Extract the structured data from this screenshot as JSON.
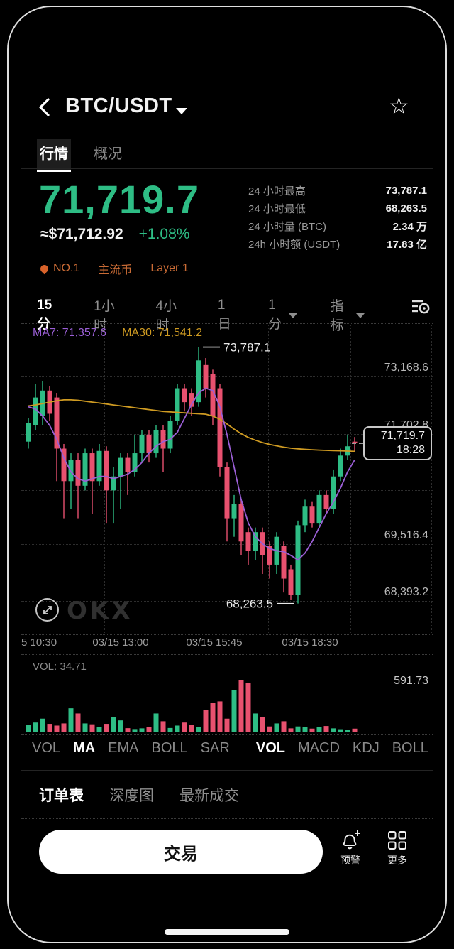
{
  "header": {
    "title": "BTC/USDT",
    "back_icon": "back-chevron",
    "favorite_icon": "star"
  },
  "tabs": [
    {
      "label": "行情"
    },
    {
      "label": "概况"
    }
  ],
  "price": {
    "last": "71,719.7",
    "fiat": "≈$71,712.92",
    "change": "+1.08%"
  },
  "badges": {
    "rank": "NO.1",
    "tag1": "主流币",
    "tag2": "Layer 1"
  },
  "stats": [
    {
      "label": "24 小时最高",
      "value": "73,787.1"
    },
    {
      "label": "24 小时最低",
      "value": "68,263.5"
    },
    {
      "label": "24 小时量 (BTC)",
      "value": "2.34 万"
    },
    {
      "label": "24h 小时额 (USDT)",
      "value": "17.83 亿"
    }
  ],
  "timeframes": [
    {
      "label": "15分"
    },
    {
      "label": "1小时"
    },
    {
      "label": "4小时"
    },
    {
      "label": "1日"
    },
    {
      "label": "1分"
    },
    {
      "label": "指标"
    }
  ],
  "chart": {
    "ma7_label": "MA7: 71,357.6",
    "ma30_label": "MA30: 71,541.2",
    "high_label": "73,787.1",
    "low_label": "68,263.5",
    "price_tag": {
      "price": "71,719.7",
      "time": "18:28"
    },
    "y_axis": [
      "73,168.6",
      "71,702.8",
      "69,516.4",
      "68,393.2"
    ],
    "x_axis": [
      "5 10:30",
      "03/15 13:00",
      "03/15 15:45",
      "03/15 18:30"
    ],
    "watermark": "OKX"
  },
  "volume": {
    "label": "VOL: 34.71",
    "max_label": "591.73"
  },
  "indicators": [
    {
      "label": "VOL"
    },
    {
      "label": "MA"
    },
    {
      "label": "EMA"
    },
    {
      "label": "BOLL"
    },
    {
      "label": "SAR"
    },
    {
      "label": "VOL"
    },
    {
      "label": "MACD"
    },
    {
      "label": "KDJ"
    },
    {
      "label": "BOLL"
    }
  ],
  "bottom_tabs": [
    {
      "label": "订单表"
    },
    {
      "label": "深度图"
    },
    {
      "label": "最新成交"
    }
  ],
  "actions": {
    "trade": "交易",
    "alert": "预警",
    "more": "更多"
  },
  "chart_data": {
    "type": "candlestick",
    "timeframe": "15分",
    "pair": "BTC/USDT",
    "y_ticks": [
      73168.6,
      71702.8,
      69516.4,
      68393.2
    ],
    "x_ticks": [
      "5 10:30",
      "03/15 13:00",
      "03/15 15:45",
      "03/15 18:30"
    ],
    "high": 73787.1,
    "low": 68263.5,
    "last": 71719.7,
    "last_time": "18:28",
    "ma7_last": 71357.6,
    "ma30_last": 71541.2,
    "colors": {
      "up": "#2ebd85",
      "down": "#e8516f",
      "ma7": "#9b5fd6",
      "ma30": "#cf9b22"
    },
    "candles": [
      [
        71750,
        72150,
        72250,
        71600
      ],
      [
        72100,
        72700,
        73000,
        72000
      ],
      [
        72300,
        72850,
        73050,
        72100
      ],
      [
        72850,
        72350,
        72950,
        72200
      ],
      [
        72700,
        71600,
        72800,
        70900
      ],
      [
        71600,
        70900,
        71700,
        70100
      ],
      [
        70900,
        71350,
        71500,
        70300
      ],
      [
        71350,
        70800,
        71500,
        70100
      ],
      [
        70800,
        71500,
        71600,
        70700
      ],
      [
        71500,
        70900,
        71600,
        70200
      ],
      [
        70900,
        71550,
        71700,
        70800
      ],
      [
        71550,
        70700,
        71650,
        70000
      ],
      [
        70700,
        71000,
        71200,
        70000
      ],
      [
        71000,
        71400,
        71500,
        70300
      ],
      [
        71400,
        71100,
        71500,
        70600
      ],
      [
        71100,
        71500,
        71900,
        71000
      ],
      [
        71500,
        71900,
        72000,
        71300
      ],
      [
        71900,
        71500,
        72000,
        71300
      ],
      [
        71500,
        72000,
        72100,
        71400
      ],
      [
        72000,
        71600,
        72100,
        71100
      ],
      [
        71600,
        72200,
        72300,
        71500
      ],
      [
        72200,
        72900,
        73000,
        72100
      ],
      [
        72900,
        72600,
        73000,
        72400
      ],
      [
        72800,
        72500,
        72900,
        72300
      ],
      [
        72600,
        73500,
        73787.1,
        72500
      ],
      [
        73400,
        72900,
        73550,
        72700
      ],
      [
        73200,
        72300,
        73300,
        72100
      ],
      [
        72900,
        71200,
        73000,
        71000
      ],
      [
        71200,
        70100,
        71300,
        69600
      ],
      [
        70100,
        70400,
        70600,
        69700
      ],
      [
        70400,
        69600,
        70500,
        69300
      ],
      [
        69800,
        69400,
        69900,
        69100
      ],
      [
        69400,
        69800,
        69900,
        69200
      ],
      [
        69800,
        69300,
        69900,
        68900
      ],
      [
        69500,
        69100,
        69600,
        68800
      ],
      [
        69100,
        69700,
        69800,
        68900
      ],
      [
        69500,
        68800,
        69600,
        68500
      ],
      [
        69000,
        68450,
        69100,
        68350
      ],
      [
        68450,
        69950,
        70050,
        68263.5
      ],
      [
        69950,
        70350,
        70500,
        69800
      ],
      [
        70350,
        70000,
        70450,
        69900
      ],
      [
        70000,
        70600,
        70700,
        69900
      ],
      [
        70600,
        70300,
        70700,
        70200
      ],
      [
        70300,
        71000,
        71150,
        70200
      ],
      [
        71000,
        71450,
        71600,
        70900
      ],
      [
        71450,
        71650,
        71900,
        71350
      ],
      [
        71750,
        71719.7,
        71850,
        71550
      ]
    ],
    "ma7": [
      72500,
      72450,
      72300,
      72100,
      71800,
      71400,
      71100,
      70950,
      70900,
      70950,
      71000,
      71000,
      70950,
      71000,
      71050,
      71150,
      71300,
      71500,
      71650,
      71750,
      71800,
      71950,
      72250,
      72550,
      72800,
      72900,
      72850,
      72500,
      71900,
      71200,
      70500,
      70000,
      69700,
      69550,
      69450,
      69400,
      69380,
      69300,
      69200,
      69350,
      69600,
      69900,
      70200,
      70450,
      70750,
      71100,
      71357.6
    ],
    "ma30": [
      72520,
      72540,
      72570,
      72600,
      72630,
      72650,
      72650,
      72640,
      72620,
      72600,
      72580,
      72560,
      72540,
      72520,
      72500,
      72480,
      72460,
      72440,
      72420,
      72400,
      72390,
      72380,
      72370,
      72360,
      72350,
      72340,
      72300,
      72230,
      72130,
      72020,
      71920,
      71840,
      71780,
      71730,
      71690,
      71660,
      71630,
      71610,
      71595,
      71585,
      71575,
      71568,
      71562,
      71557,
      71552,
      71546,
      71541.2
    ],
    "volumes": [
      75,
      105,
      150,
      90,
      70,
      95,
      270,
      210,
      95,
      85,
      50,
      90,
      165,
      130,
      40,
      30,
      38,
      50,
      210,
      120,
      42,
      70,
      105,
      80,
      50,
      250,
      330,
      350,
      150,
      480,
      591.73,
      560,
      210,
      165,
      60,
      95,
      120,
      38,
      60,
      50,
      35,
      55,
      65,
      38,
      28,
      22,
      34.71
    ],
    "volume_max": 591.73,
    "volume_current": 34.71
  }
}
